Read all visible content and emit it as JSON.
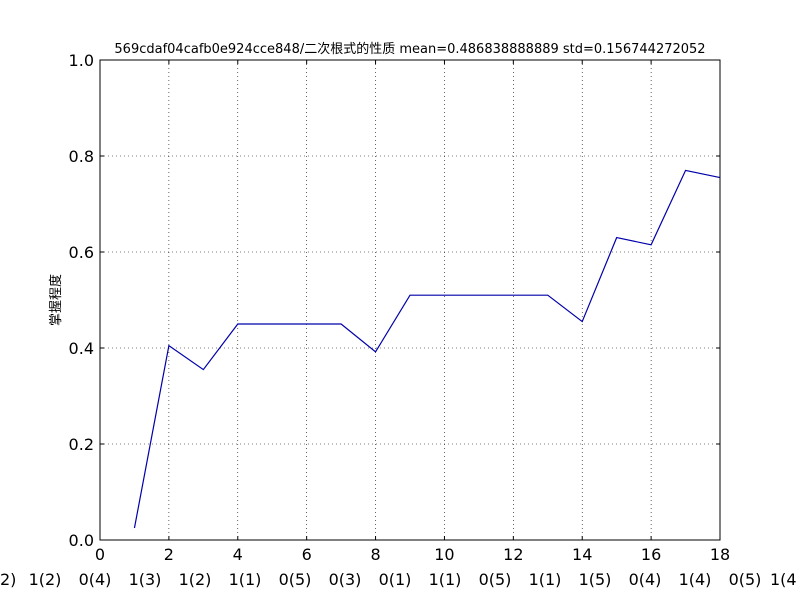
{
  "chart_data": {
    "type": "line",
    "title": "569cdaf04cafb0e924cce848/二次根式的性质  mean=0.486838888889 std=0.156744272052",
    "xlabel": "",
    "ylabel": "掌握程度",
    "xlim": [
      0,
      18
    ],
    "ylim": [
      0,
      1.0
    ],
    "xticks": [
      0,
      2,
      4,
      6,
      8,
      10,
      12,
      14,
      16,
      18
    ],
    "yticks": [
      0.0,
      0.2,
      0.4,
      0.6,
      0.8,
      1.0
    ],
    "grid": true,
    "series": [
      {
        "color": "#0000aa",
        "x": [
          1,
          2,
          3,
          4,
          5,
          6,
          7,
          8,
          9,
          10,
          11,
          12,
          13,
          14,
          15,
          16,
          17,
          18
        ],
        "y": [
          0.025,
          0.405,
          0.355,
          0.45,
          0.45,
          0.45,
          0.45,
          0.392,
          0.51,
          0.51,
          0.51,
          0.51,
          0.51,
          0.455,
          0.63,
          0.615,
          0.77,
          0.755
        ]
      }
    ],
    "extra_labels": [
      "2)",
      "1(2)",
      "0(4)",
      "1(3)",
      "1(2)",
      "1(1)",
      "0(5)",
      "0(3)",
      "0(1)",
      "1(1)",
      "0(5)",
      "1(1)",
      "1(5)",
      "0(4)",
      "1(4)",
      "0(5)",
      "1(4"
    ]
  }
}
